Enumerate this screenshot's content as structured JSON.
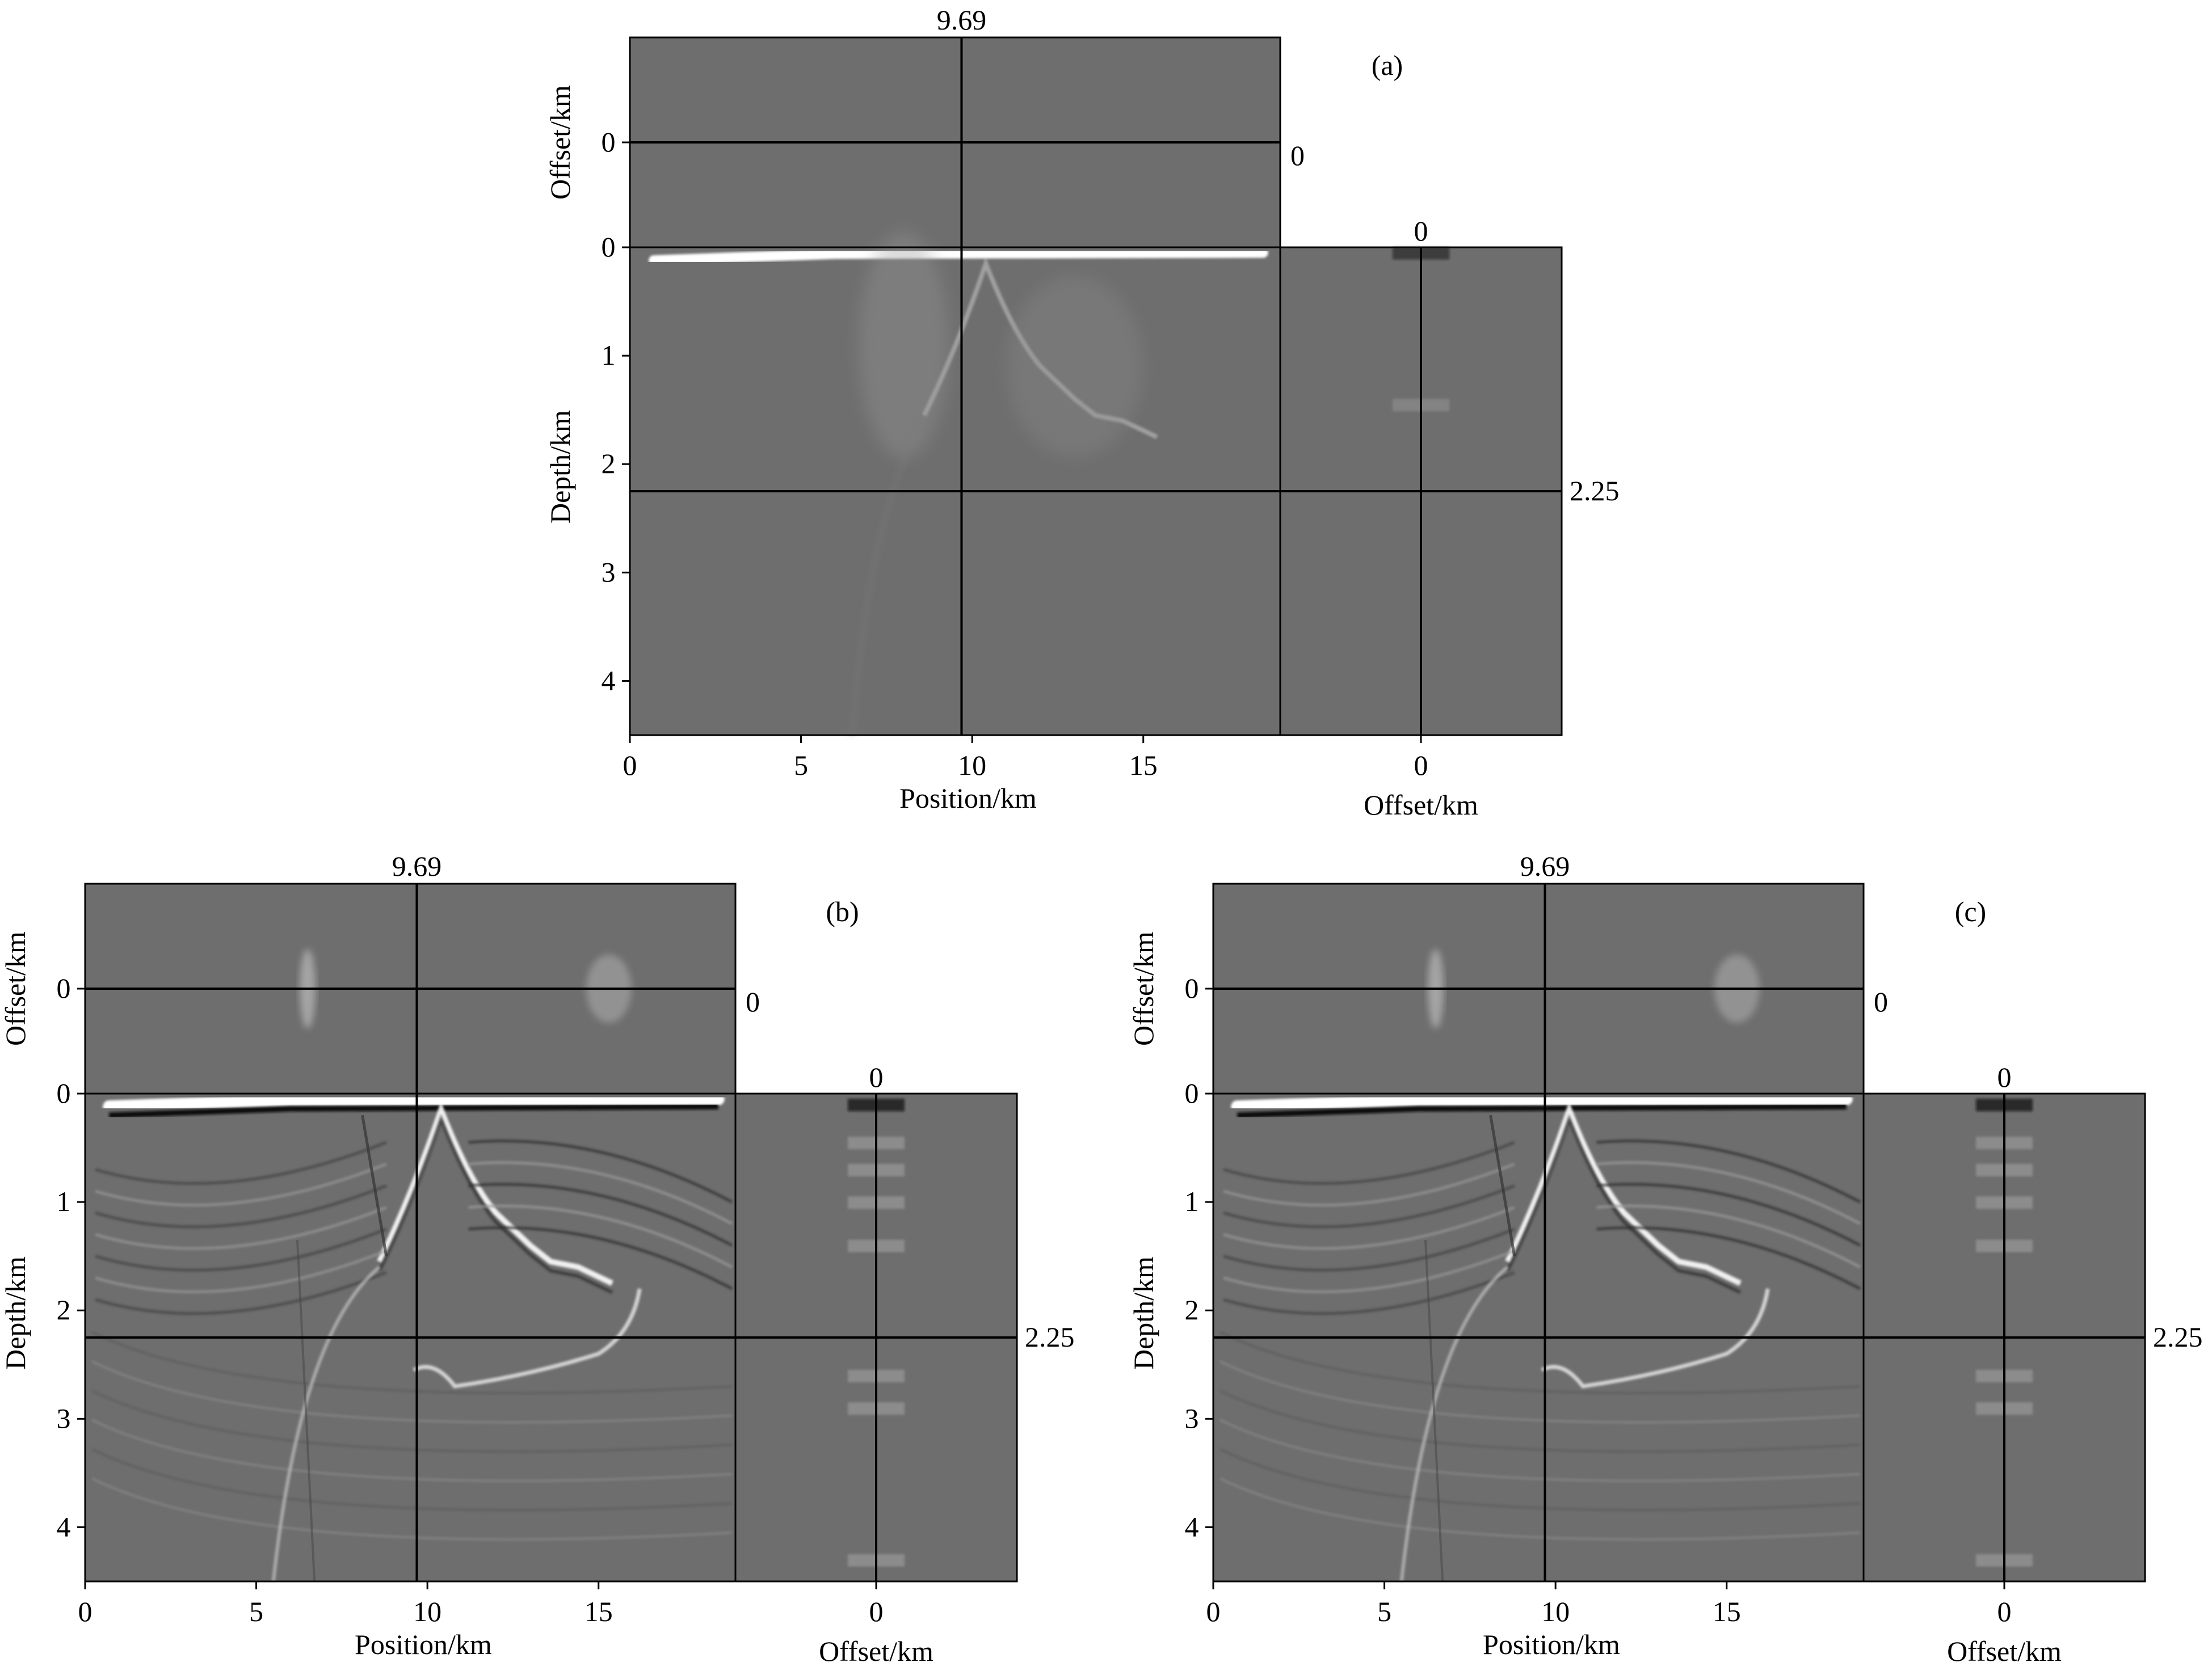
{
  "figure": {
    "panels": [
      {
        "label": "(a)",
        "position_line": "9.69",
        "offset_line": "0",
        "offset_top_label": "0",
        "depth_line": "2.25",
        "offset_ylabel": "Offset/km",
        "offset_ytick": "0",
        "depth_ylabel": "Depth/km",
        "depth_yticks": [
          "0",
          "1",
          "2",
          "3",
          "4"
        ],
        "position_xticks": [
          "0",
          "5",
          "10",
          "15"
        ],
        "position_xlabel": "Position/km",
        "offset_xtick": "0",
        "offset_xlabel": "Offset/km",
        "image_type": "faint"
      },
      {
        "label": "(b)",
        "position_line": "9.69",
        "offset_line": "0",
        "offset_top_label": "0",
        "depth_line": "2.25",
        "offset_ylabel": "Offset/km",
        "offset_ytick": "0",
        "depth_ylabel": "Depth/km",
        "depth_yticks": [
          "0",
          "1",
          "2",
          "3",
          "4"
        ],
        "position_xticks": [
          "0",
          "5",
          "10",
          "15"
        ],
        "position_xlabel": "Position/km",
        "offset_xtick": "0",
        "offset_xlabel": "Offset/km",
        "image_type": "sharp"
      },
      {
        "label": "(c)",
        "position_line": "9.69",
        "offset_line": "0",
        "offset_top_label": "0",
        "depth_line": "2.25",
        "offset_ylabel": "Offset/km",
        "offset_ytick": "0",
        "depth_ylabel": "Depth/km",
        "depth_yticks": [
          "0",
          "1",
          "2",
          "3",
          "4"
        ],
        "position_xticks": [
          "0",
          "5",
          "10",
          "15"
        ],
        "position_xlabel": "Position/km",
        "offset_xtick": "0",
        "offset_xlabel": "Offset/km",
        "image_type": "sharpest"
      }
    ],
    "colors": {
      "background_gray": "#6e6e6e",
      "line": "#000000",
      "bright": "#ffffff"
    }
  },
  "chart_data": [
    {
      "type": "heatmap",
      "panel": "(a)",
      "x_range_km": [
        0,
        19
      ],
      "depth_range_km": [
        0,
        4.5
      ],
      "crosshair": {
        "position_km": 9.69,
        "offset_km": 0,
        "depth_km": 2.25
      },
      "xticks": [
        0,
        5,
        10,
        15
      ],
      "depth_ticks": [
        0,
        1,
        2,
        3,
        4
      ]
    },
    {
      "type": "heatmap",
      "panel": "(b)",
      "x_range_km": [
        0,
        19
      ],
      "depth_range_km": [
        0,
        4.5
      ],
      "crosshair": {
        "position_km": 9.69,
        "offset_km": 0,
        "depth_km": 2.25
      },
      "xticks": [
        0,
        5,
        10,
        15
      ],
      "depth_ticks": [
        0,
        1,
        2,
        3,
        4
      ]
    },
    {
      "type": "heatmap",
      "panel": "(c)",
      "x_range_km": [
        0,
        19
      ],
      "depth_range_km": [
        0,
        4.5
      ],
      "crosshair": {
        "position_km": 9.69,
        "offset_km": 0,
        "depth_km": 2.25
      },
      "xticks": [
        0,
        5,
        10,
        15
      ],
      "depth_ticks": [
        0,
        1,
        2,
        3,
        4
      ]
    }
  ]
}
